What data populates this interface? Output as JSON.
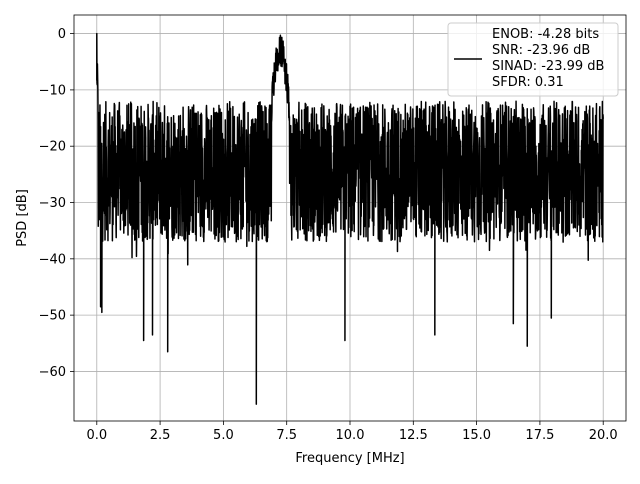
{
  "chart_data": {
    "type": "line",
    "title": "",
    "xlabel": "Frequency [MHz]",
    "ylabel": "PSD [dB]",
    "xlim": [
      -0.9,
      20.9
    ],
    "ylim": [
      -68.8,
      3.3
    ],
    "xticks": [
      0.0,
      2.5,
      5.0,
      7.5,
      10.0,
      12.5,
      15.0,
      17.5,
      20.0
    ],
    "xtick_labels": [
      "0.0",
      "2.5",
      "5.0",
      "7.5",
      "10.0",
      "12.5",
      "15.0",
      "17.5",
      "20.0"
    ],
    "yticks": [
      0,
      -10,
      -20,
      -30,
      -40,
      -50,
      -60
    ],
    "ytick_labels": [
      "0",
      "−10",
      "−20",
      "−30",
      "−40",
      "−50",
      "−60"
    ],
    "grid": true,
    "legend_position": "top-right",
    "series": [
      {
        "name": "ENOB: -4.28 bits\nSNR: -23.96 dB\nSINAD: -23.99 dB\nSFDR: 0.31",
        "color": "#000000",
        "description_points": {
          "x_range": [
            0.0,
            20.0
          ],
          "noise_top": -12,
          "noise_bottom": -37,
          "peaks": [
            {
              "x": 0.0,
              "y": 0.0
            },
            {
              "x": 7.25,
              "y": -0.3
            }
          ],
          "dips": [
            {
              "x": 0.15,
              "y": -48.5
            },
            {
              "x": 0.2,
              "y": -49.5
            },
            {
              "x": 1.85,
              "y": -54.5
            },
            {
              "x": 2.2,
              "y": -53.5
            },
            {
              "x": 2.8,
              "y": -56.5
            },
            {
              "x": 6.3,
              "y": -65.8
            },
            {
              "x": 9.8,
              "y": -54.5
            },
            {
              "x": 13.35,
              "y": -53.5
            },
            {
              "x": 16.45,
              "y": -51.5
            },
            {
              "x": 17.0,
              "y": -55.5
            },
            {
              "x": 17.95,
              "y": -50.5
            }
          ]
        }
      }
    ],
    "legend_lines": [
      "ENOB: -4.28 bits",
      "SNR: -23.96 dB",
      "SINAD: -23.99 dB",
      "SFDR: 0.31"
    ]
  }
}
